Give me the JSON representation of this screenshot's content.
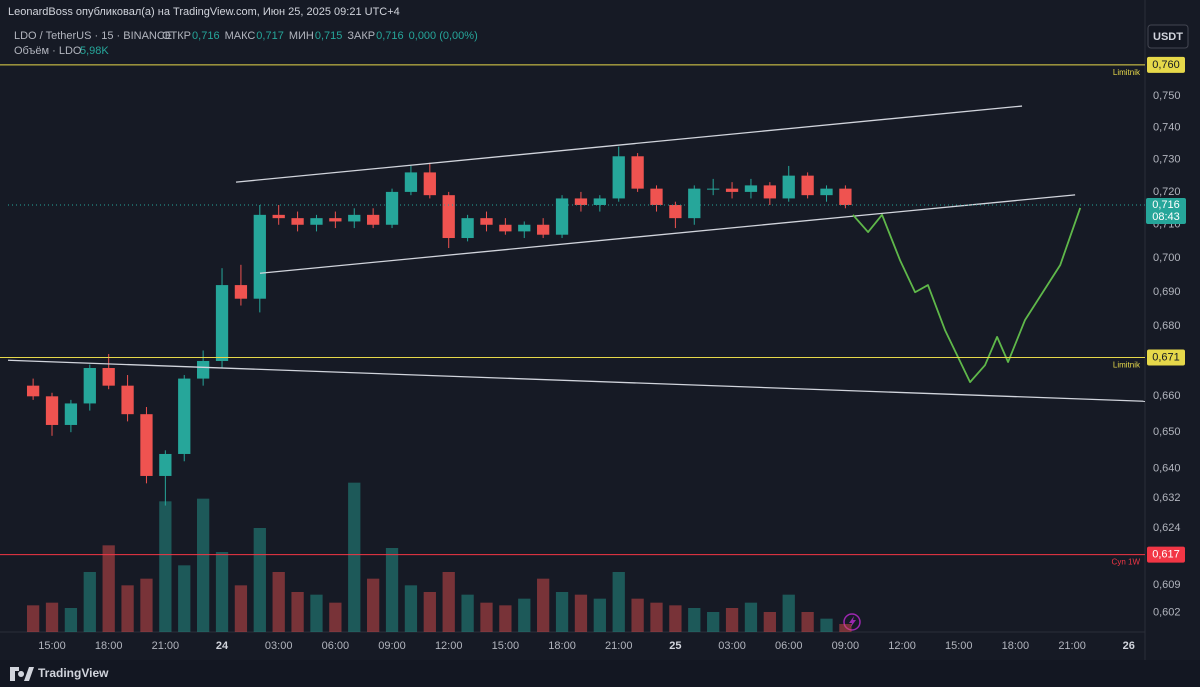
{
  "chart_data": {
    "type": "candlestick",
    "title": "LeonardBoss опубликовал(а) на TradingView.com, Июн 25, 2025 09:21 UTC+4",
    "symbol": "LDO / TetherUS · 15 · BINANCE",
    "ohlc_fields": [
      {
        "label": "ОТКР",
        "value": "0,716"
      },
      {
        "label": "МАКС",
        "value": "0,717"
      },
      {
        "label": "МИН",
        "value": "0,715"
      },
      {
        "label": "ЗАКР",
        "value": "0,716"
      }
    ],
    "change": "0,000 (0,00%)",
    "volume_title": "Объём · LDO",
    "volume_value": "5,98K",
    "currency": "USDT",
    "brand": "TradingView",
    "log_scale": true,
    "grid": false,
    "up_color": "#26a69a",
    "down_color": "#ef5350",
    "x": [
      14,
      15,
      16,
      17,
      18,
      19,
      20,
      21,
      22,
      23,
      24,
      25,
      26,
      27,
      28,
      29,
      30,
      31,
      32,
      33,
      34,
      35,
      36,
      37,
      38,
      39,
      40,
      41,
      42,
      43,
      44,
      45,
      46,
      47,
      48,
      49,
      50,
      51,
      52,
      53,
      54,
      55,
      56,
      57
    ],
    "open": [
      0.663,
      0.66,
      0.652,
      0.658,
      0.668,
      0.663,
      0.655,
      0.638,
      0.644,
      0.665,
      0.67,
      0.692,
      0.688,
      0.713,
      0.712,
      0.71,
      0.712,
      0.711,
      0.713,
      0.71,
      0.72,
      0.726,
      0.719,
      0.706,
      0.712,
      0.71,
      0.708,
      0.71,
      0.707,
      0.718,
      0.716,
      0.718,
      0.731,
      0.721,
      0.716,
      0.712,
      0.721,
      0.721,
      0.72,
      0.722,
      0.718,
      0.725,
      0.719,
      0.721
    ],
    "high": [
      0.665,
      0.661,
      0.659,
      0.669,
      0.672,
      0.666,
      0.657,
      0.645,
      0.666,
      0.673,
      0.697,
      0.698,
      0.716,
      0.716,
      0.714,
      0.713,
      0.714,
      0.715,
      0.715,
      0.721,
      0.728,
      0.729,
      0.72,
      0.713,
      0.714,
      0.712,
      0.711,
      0.712,
      0.719,
      0.72,
      0.719,
      0.734,
      0.732,
      0.722,
      0.717,
      0.722,
      0.724,
      0.723,
      0.724,
      0.723,
      0.728,
      0.726,
      0.722,
      0.722
    ],
    "low": [
      0.659,
      0.649,
      0.65,
      0.656,
      0.662,
      0.653,
      0.636,
      0.63,
      0.642,
      0.663,
      0.668,
      0.686,
      0.684,
      0.71,
      0.708,
      0.708,
      0.709,
      0.709,
      0.709,
      0.709,
      0.719,
      0.718,
      0.703,
      0.705,
      0.708,
      0.707,
      0.706,
      0.706,
      0.706,
      0.714,
      0.714,
      0.717,
      0.72,
      0.714,
      0.709,
      0.71,
      0.719,
      0.718,
      0.718,
      0.716,
      0.717,
      0.718,
      0.717,
      0.715
    ],
    "close": [
      0.66,
      0.652,
      0.658,
      0.668,
      0.663,
      0.655,
      0.638,
      0.644,
      0.665,
      0.67,
      0.692,
      0.688,
      0.713,
      0.712,
      0.71,
      0.712,
      0.711,
      0.713,
      0.71,
      0.72,
      0.726,
      0.719,
      0.706,
      0.712,
      0.71,
      0.708,
      0.71,
      0.707,
      0.718,
      0.716,
      0.718,
      0.731,
      0.721,
      0.716,
      0.712,
      0.721,
      0.721,
      0.72,
      0.722,
      0.718,
      0.725,
      0.719,
      0.721,
      0.716
    ],
    "volume": [
      20,
      22,
      18,
      45,
      65,
      35,
      40,
      98,
      50,
      100,
      60,
      35,
      78,
      45,
      30,
      28,
      22,
      112,
      40,
      63,
      35,
      30,
      45,
      28,
      22,
      20,
      25,
      40,
      30,
      28,
      25,
      45,
      25,
      22,
      20,
      18,
      15,
      18,
      22,
      15,
      28,
      15,
      10,
      6
    ],
    "vlim": [
      0,
      300
    ],
    "ylim": [
      0.597,
      0.774
    ],
    "yticks": [
      {
        "value": 0.75,
        "label": "0,750"
      },
      {
        "value": 0.74,
        "label": "0,740"
      },
      {
        "value": 0.73,
        "label": "0,730"
      },
      {
        "value": 0.72,
        "label": "0,720"
      },
      {
        "value": 0.71,
        "label": "0,710"
      },
      {
        "value": 0.7,
        "label": "0,700"
      },
      {
        "value": 0.69,
        "label": "0,690"
      },
      {
        "value": 0.68,
        "label": "0,680"
      },
      {
        "value": 0.66,
        "label": "0,660"
      },
      {
        "value": 0.65,
        "label": "0,650"
      },
      {
        "value": 0.64,
        "label": "0,640"
      },
      {
        "value": 0.632,
        "label": "0,632"
      },
      {
        "value": 0.624,
        "label": "0,624"
      },
      {
        "value": 0.609,
        "label": "0,609"
      },
      {
        "value": 0.602,
        "label": "0,602"
      }
    ],
    "xlim": [
      12.67,
      72.86
    ],
    "xticks": [
      {
        "value": 15,
        "label": "15:00"
      },
      {
        "value": 18,
        "label": "18:00"
      },
      {
        "value": 21,
        "label": "21:00"
      },
      24,
      {
        "value": 27,
        "label": "03:00"
      },
      {
        "value": 30,
        "label": "06:00"
      },
      {
        "value": 33,
        "label": "09:00"
      },
      {
        "value": 36,
        "label": "12:00"
      },
      {
        "value": 39,
        "label": "15:00"
      },
      {
        "value": 42,
        "label": "18:00"
      },
      {
        "value": 45,
        "label": "21:00"
      },
      {
        "value": 48,
        "label": "25"
      },
      {
        "value": 51,
        "label": "03:00"
      },
      {
        "value": 54,
        "label": "06:00"
      },
      {
        "value": 57,
        "label": "09:00"
      },
      {
        "value": 60,
        "label": "12:00"
      },
      {
        "value": 63,
        "label": "15:00"
      },
      {
        "value": 66,
        "label": "18:00"
      },
      {
        "value": 69,
        "label": "21:00"
      },
      {
        "value": 72,
        "label": "26"
      }
    ],
    "levels": [
      {
        "value": 0.76,
        "label": "0,760",
        "note": "Limitnik",
        "color": "#e6d84a",
        "text_color": "#131722"
      },
      {
        "value": 0.671,
        "label": "0,671",
        "note": "Limitnik",
        "color": "#e6d84a",
        "text_color": "#131722"
      },
      {
        "value": 0.617,
        "label": "0,617",
        "note": "Cyn 1W",
        "color": "#f23645",
        "text_color": "#ffffff"
      }
    ],
    "trendlines": [
      {
        "x": [
          24.74,
          66.35
        ],
        "y": [
          0.723,
          0.7468
        ],
        "color": "#d1d4dc"
      },
      {
        "x": [
          26.01,
          69.16
        ],
        "y": [
          0.6955,
          0.7191
        ],
        "color": "#d1d4dc"
      },
      {
        "x": [
          12.67,
          72.86
        ],
        "y": [
          0.6702,
          0.6586
        ],
        "color": "#d1d4dc"
      }
    ],
    "forecast": {
      "color": "#5fb84a",
      "x": [
        57.4,
        58.2,
        58.94,
        59.89,
        60.69,
        61.37,
        62.27,
        63.6,
        64.39,
        65.03,
        65.61,
        66.51,
        68.37,
        69.43
      ],
      "y": [
        0.713,
        0.7078,
        0.713,
        0.6994,
        0.6899,
        0.692,
        0.6789,
        0.664,
        0.6688,
        0.6769,
        0.6697,
        0.6818,
        0.6979,
        0.7151
      ]
    },
    "last_price": {
      "value": 0.716,
      "label": "0,716",
      "countdown": "08:43"
    }
  }
}
